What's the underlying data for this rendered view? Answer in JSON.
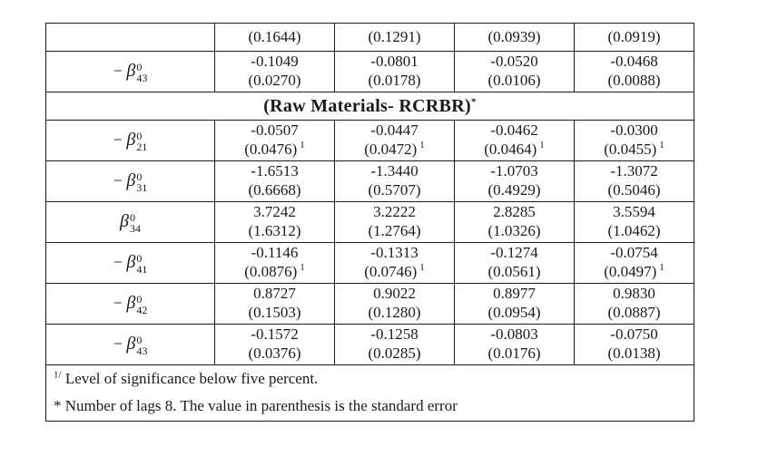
{
  "colors": {
    "background": "#ffffff",
    "text": "#1a1a1a",
    "border": "#1c1c1c"
  },
  "table": {
    "sig_marker": "1",
    "column_count": 5,
    "rows": [
      {
        "type": "se_only",
        "label": null,
        "cells": [
          {
            "se": "(0.1644)"
          },
          {
            "se": "(0.1291)"
          },
          {
            "se": "(0.0939)"
          },
          {
            "se": "(0.0919)"
          }
        ]
      },
      {
        "type": "data",
        "label": {
          "minus": "− ",
          "base": "β",
          "sup": "0",
          "sub": "43"
        },
        "cells": [
          {
            "value": "-0.1049",
            "se": "(0.0270)",
            "sig": false
          },
          {
            "value": "-0.0801",
            "se": "(0.0178)",
            "sig": false
          },
          {
            "value": "-0.0520",
            "se": "(0.0106)",
            "sig": false
          },
          {
            "value": "-0.0468",
            "se": "(0.0088)",
            "sig": false
          }
        ]
      },
      {
        "type": "section",
        "text": "(Raw Materials- RCRBR)",
        "sup": "*"
      },
      {
        "type": "data",
        "label": {
          "minus": "− ",
          "base": "β",
          "sup": "0",
          "sub": "21"
        },
        "cells": [
          {
            "value": "-0.0507",
            "se": "(0.0476)",
            "sig": true
          },
          {
            "value": "-0.0447",
            "se": "(0.0472)",
            "sig": true
          },
          {
            "value": "-0.0462",
            "se": "(0.0464)",
            "sig": true
          },
          {
            "value": "-0.0300",
            "se": "(0.0455)",
            "sig": true
          }
        ]
      },
      {
        "type": "data",
        "label": {
          "minus": "− ",
          "base": "β",
          "sup": "0",
          "sub": "31"
        },
        "cells": [
          {
            "value": "-1.6513",
            "se": "(0.6668)",
            "sig": false
          },
          {
            "value": "-1.3440",
            "se": "(0.5707)",
            "sig": false
          },
          {
            "value": "-1.0703",
            "se": "(0.4929)",
            "sig": false
          },
          {
            "value": "-1.3072",
            "se": "(0.5046)",
            "sig": false
          }
        ]
      },
      {
        "type": "data",
        "label": {
          "minus": "",
          "base": "β",
          "sup": "0",
          "sub": "34"
        },
        "cells": [
          {
            "value": "3.7242",
            "se": "(1.6312)",
            "sig": false
          },
          {
            "value": "3.2222",
            "se": "(1.2764)",
            "sig": false
          },
          {
            "value": "2.8285",
            "se": "(1.0326)",
            "sig": false
          },
          {
            "value": "3.5594",
            "se": "(1.0462)",
            "sig": false
          }
        ]
      },
      {
        "type": "data",
        "label": {
          "minus": "− ",
          "base": "β",
          "sup": "0",
          "sub": "41"
        },
        "cells": [
          {
            "value": "-0.1146",
            "se": "(0.0876)",
            "sig": true
          },
          {
            "value": "-0.1313",
            "se": "(0.0746)",
            "sig": true
          },
          {
            "value": "-0.1274",
            "se": "(0.0561)",
            "sig": false
          },
          {
            "value": "-0.0754",
            "se": "(0.0497)",
            "sig": true
          }
        ]
      },
      {
        "type": "data",
        "label": {
          "minus": "− ",
          "base": "β",
          "sup": "0",
          "sub": "42"
        },
        "cells": [
          {
            "value": "0.8727",
            "se": "(0.1503)",
            "sig": false
          },
          {
            "value": "0.9022",
            "se": "(0.1280)",
            "sig": false
          },
          {
            "value": "0.8977",
            "se": "(0.0954)",
            "sig": false
          },
          {
            "value": "0.9830",
            "se": "(0.0887)",
            "sig": false
          }
        ]
      },
      {
        "type": "data",
        "label": {
          "minus": "− ",
          "base": "β",
          "sup": "0",
          "sub": "43"
        },
        "cells": [
          {
            "value": "-0.1572",
            "se": "(0.0376)",
            "sig": false
          },
          {
            "value": "-0.1258",
            "se": "(0.0285)",
            "sig": false
          },
          {
            "value": "-0.0803",
            "se": "(0.0176)",
            "sig": false
          },
          {
            "value": "-0.0750",
            "se": "(0.0138)",
            "sig": false
          }
        ]
      }
    ],
    "footnotes": [
      {
        "sup": "1/",
        "text": "Level of significance below five percent."
      },
      {
        "sup": "",
        "text": "* Number of lags 8. The value in parenthesis is the standard error"
      }
    ]
  }
}
